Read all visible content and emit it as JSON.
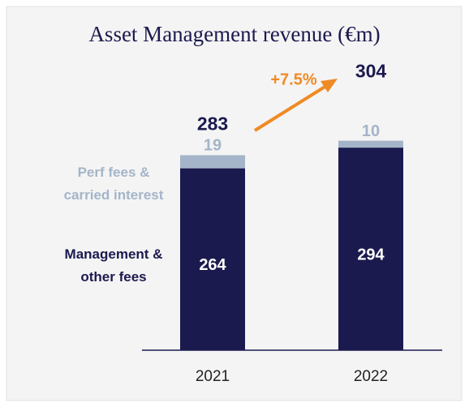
{
  "chart_data": {
    "type": "stacked_bar",
    "title": "Asset Management revenue (€m)",
    "categories": [
      "2021",
      "2022"
    ],
    "series": [
      {
        "name": "Management & other fees",
        "color": "#1b1a4f",
        "values": [
          264,
          294
        ]
      },
      {
        "name": "Perf fees & carried interest",
        "color": "#a4b5c9",
        "values": [
          19,
          10
        ]
      }
    ],
    "totals": [
      283,
      304
    ],
    "annotation": "+7.5%",
    "annotation_color": "#f08a24",
    "ylim": [
      0,
      350
    ]
  }
}
